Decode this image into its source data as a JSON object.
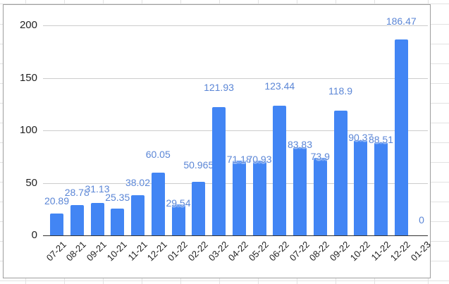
{
  "chart_data": {
    "type": "bar",
    "title": "",
    "xlabel": "",
    "ylabel": "",
    "ylim": [
      0,
      200
    ],
    "yticks": [
      0,
      50,
      100,
      150,
      200
    ],
    "grid": true,
    "legend": "none",
    "bar_color": "#4285f4",
    "label_color": "#5b86d6",
    "categories": [
      "07-21",
      "08-21",
      "09-21",
      "10-21",
      "11-21",
      "12-21",
      "01-22",
      "02-22",
      "03-22",
      "04-22",
      "05-22",
      "06-22",
      "07-22",
      "08-22",
      "09-22",
      "10-22",
      "11-22",
      "12-22",
      "01-23"
    ],
    "values": [
      20.89,
      28.78,
      31.13,
      25.35,
      38.02,
      60.05,
      29.54,
      50.965,
      121.93,
      71.18,
      70.93,
      123.44,
      83.83,
      73.9,
      118.9,
      90.37,
      88.51,
      186.47,
      0
    ],
    "data_labels": [
      "20.89",
      "28.78",
      "31.13",
      "25.35",
      "38.02",
      "60.05",
      "29.54",
      "50.965",
      "121.93",
      "71.18",
      "70.93",
      "123.44",
      "83.83",
      "73.9",
      "118.9",
      "90.37",
      "88.51",
      "186.47",
      "0"
    ]
  }
}
